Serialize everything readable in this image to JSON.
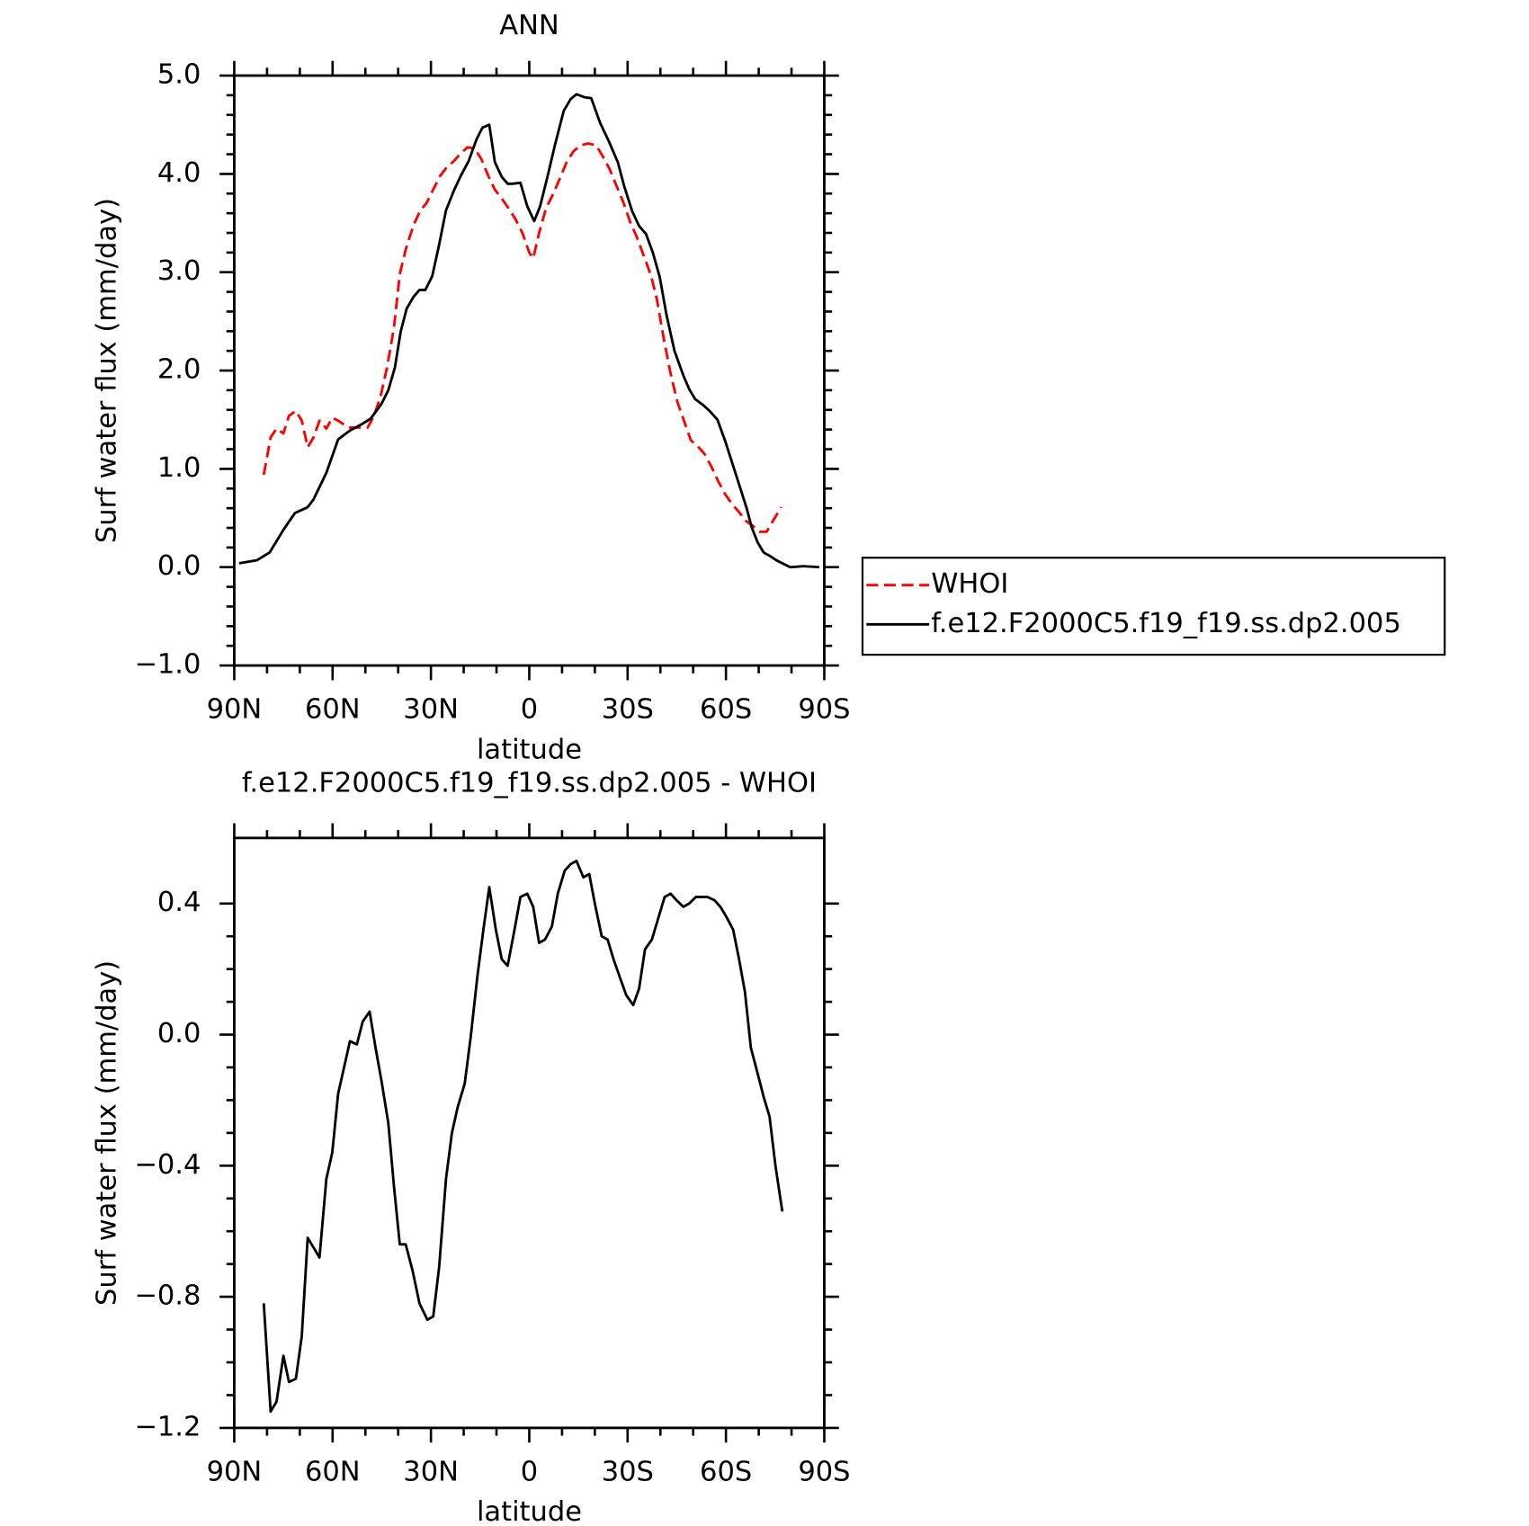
{
  "chart_data": [
    {
      "type": "line",
      "title": "ANN",
      "x_label": "latitude",
      "y_label": "Surf water flux (mm/day)",
      "xlim": [
        90,
        -90
      ],
      "xticks": [
        {
          "value": 90,
          "label": "90N"
        },
        {
          "value": 60,
          "label": "60N"
        },
        {
          "value": 30,
          "label": "30N"
        },
        0,
        {
          "value": -30,
          "label": "30S"
        },
        {
          "value": -60,
          "label": "60S"
        },
        {
          "value": -90,
          "label": "90S"
        }
      ],
      "ylim": [
        -1.0,
        5.0
      ],
      "yticks": [
        {
          "value": -1.0,
          "label": "−1.0"
        },
        {
          "value": 0.0,
          "label": "0.0"
        },
        {
          "value": 1.0,
          "label": "1.0"
        },
        {
          "value": 2.0,
          "label": "2.0"
        },
        {
          "value": 3.0,
          "label": "3.0"
        },
        {
          "value": 4.0,
          "label": "4.0"
        },
        {
          "value": 5.0,
          "label": "5.0"
        }
      ],
      "legend": "right",
      "series": [
        {
          "name": "WHOI",
          "color": "#ff0000",
          "line_style": "dashed",
          "x": [
            81.0,
            78.9,
            77.1,
            75.0,
            73.3,
            71.2,
            69.4,
            67.6,
            65.8,
            64.0,
            61.9,
            60.1,
            58.3,
            56.5,
            54.7,
            52.6,
            49.3,
            47.5,
            45.4,
            43.4,
            41.3,
            39.5,
            37.7,
            35.3,
            33.2,
            31.4,
            29.3,
            27.2,
            25.1,
            23.0,
            20.9,
            18.8,
            16.7,
            14.6,
            12.5,
            10.5,
            8.4,
            6.3,
            4.2,
            2.1,
            0.0,
            -1.2,
            -3.0,
            -5.1,
            -7.2,
            -9.3,
            -11.4,
            -13.5,
            -15.6,
            -18.0,
            -20.4,
            -22.4,
            -24.5,
            -26.6,
            -28.7,
            -30.8,
            -32.9,
            -35.0,
            -37.1,
            -38.9,
            -41.0,
            -43.1,
            -45.2,
            -47.3,
            -49.3,
            -51.4,
            -53.5,
            -55.6,
            -57.7,
            -59.8,
            -61.9,
            -64.0,
            -66.1,
            -68.2,
            -70.3,
            -72.4,
            -74.5,
            -76.9
          ],
          "values": [
            0.94,
            1.32,
            1.41,
            1.36,
            1.54,
            1.59,
            1.49,
            1.22,
            1.32,
            1.49,
            1.41,
            1.52,
            1.49,
            1.45,
            1.42,
            1.42,
            1.42,
            1.53,
            1.73,
            2.03,
            2.43,
            2.98,
            3.23,
            3.48,
            3.63,
            3.7,
            3.84,
            3.98,
            4.07,
            4.13,
            4.21,
            4.27,
            4.26,
            4.15,
            3.98,
            3.84,
            3.75,
            3.65,
            3.54,
            3.4,
            3.2,
            3.14,
            3.4,
            3.65,
            3.79,
            3.95,
            4.12,
            4.23,
            4.29,
            4.31,
            4.29,
            4.18,
            4.05,
            3.88,
            3.71,
            3.51,
            3.35,
            3.16,
            2.97,
            2.73,
            2.33,
            1.97,
            1.68,
            1.48,
            1.29,
            1.23,
            1.15,
            1.02,
            0.87,
            0.74,
            0.64,
            0.56,
            0.47,
            0.42,
            0.36,
            0.36,
            0.48,
            0.61
          ]
        },
        {
          "name": "f.e12.F2000C5.f19_f19.ss.dp2.005",
          "color": "#000000",
          "line_style": "solid",
          "x": [
            88.5,
            83.1,
            79.2,
            75.0,
            71.5,
            67.6,
            65.8,
            61.9,
            58.3,
            54.7,
            50.8,
            48.4,
            45.1,
            43.0,
            41.0,
            39.2,
            37.4,
            35.3,
            33.5,
            31.7,
            29.6,
            27.5,
            25.4,
            23.0,
            20.9,
            18.5,
            16.1,
            14.3,
            12.2,
            10.5,
            8.4,
            6.6,
            5.1,
            2.7,
            0.6,
            -1.5,
            -3.3,
            -5.4,
            -7.8,
            -10.5,
            -12.6,
            -14.4,
            -16.8,
            -18.9,
            -21.6,
            -24.3,
            -27.0,
            -29.0,
            -31.4,
            -33.5,
            -35.6,
            -37.7,
            -39.8,
            -41.9,
            -44.3,
            -47.0,
            -48.8,
            -50.6,
            -53.0,
            -55.0,
            -57.4,
            -59.8,
            -62.2,
            -64.6,
            -66.4,
            -67.9,
            -69.7,
            -71.5,
            -73.6,
            -75.4,
            -77.8,
            -79.6,
            -83.7,
            -88.5
          ],
          "values": [
            0.04,
            0.07,
            0.15,
            0.38,
            0.55,
            0.61,
            0.69,
            0.96,
            1.3,
            1.39,
            1.46,
            1.51,
            1.66,
            1.8,
            2.03,
            2.4,
            2.63,
            2.75,
            2.82,
            2.82,
            2.96,
            3.28,
            3.63,
            3.83,
            3.98,
            4.13,
            4.35,
            4.47,
            4.5,
            4.12,
            3.97,
            3.9,
            3.9,
            3.91,
            3.67,
            3.52,
            3.67,
            3.95,
            4.29,
            4.64,
            4.76,
            4.81,
            4.78,
            4.77,
            4.52,
            4.33,
            4.12,
            3.87,
            3.62,
            3.47,
            3.39,
            3.2,
            2.95,
            2.56,
            2.2,
            1.95,
            1.81,
            1.71,
            1.65,
            1.59,
            1.5,
            1.28,
            1.03,
            0.78,
            0.59,
            0.4,
            0.25,
            0.15,
            0.11,
            0.07,
            0.03,
            0.0,
            0.01,
            0.0
          ]
        }
      ]
    },
    {
      "type": "line",
      "title": "f.e12.F2000C5.f19_f19.ss.dp2.005 - WHOI",
      "x_label": "latitude",
      "y_label": "Surf water flux (mm/day)",
      "xlim": [
        90,
        -90
      ],
      "xticks": [
        {
          "value": 90,
          "label": "90N"
        },
        {
          "value": 60,
          "label": "60N"
        },
        {
          "value": 30,
          "label": "30N"
        },
        0,
        {
          "value": -30,
          "label": "30S"
        },
        {
          "value": -60,
          "label": "60S"
        },
        {
          "value": -90,
          "label": "90S"
        }
      ],
      "ylim": [
        -1.2,
        0.6
      ],
      "yticks": [
        {
          "value": -1.2,
          "label": "−1.2"
        },
        {
          "value": -0.8,
          "label": "−0.8"
        },
        {
          "value": -0.4,
          "label": "−0.4"
        },
        {
          "value": 0.0,
          "label": "0.0"
        },
        {
          "value": 0.4,
          "label": "0.4"
        }
      ],
      "series": [
        {
          "color": "#000000",
          "line_style": "solid",
          "x": [
            81.0,
            78.9,
            77.1,
            75.0,
            73.3,
            71.2,
            69.4,
            67.6,
            65.8,
            64.0,
            61.9,
            60.1,
            58.3,
            56.5,
            54.7,
            52.6,
            50.8,
            48.7,
            46.9,
            45.1,
            43.0,
            41.3,
            39.5,
            37.7,
            35.6,
            33.5,
            31.1,
            29.3,
            27.5,
            25.4,
            23.6,
            21.8,
            19.7,
            17.9,
            15.8,
            14.0,
            12.2,
            10.2,
            8.4,
            6.6,
            4.5,
            2.7,
            0.6,
            -1.2,
            -3.0,
            -4.8,
            -6.9,
            -8.7,
            -10.8,
            -12.6,
            -14.4,
            -16.5,
            -18.3,
            -20.0,
            -22.1,
            -23.9,
            -25.7,
            -27.8,
            -29.6,
            -31.7,
            -33.5,
            -35.3,
            -37.4,
            -39.2,
            -41.3,
            -43.1,
            -44.9,
            -47.0,
            -48.8,
            -50.8,
            -52.6,
            -54.4,
            -56.5,
            -58.3,
            -60.1,
            -62.2,
            -64.0,
            -65.8,
            -67.6,
            -69.7,
            -71.5,
            -73.3,
            -75.1,
            -77.2
          ],
          "values": [
            -0.82,
            -1.15,
            -1.12,
            -0.98,
            -1.06,
            -1.05,
            -0.92,
            -0.62,
            -0.65,
            -0.68,
            -0.44,
            -0.36,
            -0.18,
            -0.1,
            -0.02,
            -0.03,
            0.04,
            0.07,
            -0.04,
            -0.14,
            -0.27,
            -0.46,
            -0.64,
            -0.64,
            -0.72,
            -0.82,
            -0.87,
            -0.86,
            -0.71,
            -0.44,
            -0.3,
            -0.22,
            -0.15,
            -0.01,
            0.18,
            0.32,
            0.45,
            0.32,
            0.23,
            0.21,
            0.32,
            0.42,
            0.43,
            0.39,
            0.28,
            0.29,
            0.33,
            0.43,
            0.5,
            0.52,
            0.53,
            0.48,
            0.49,
            0.4,
            0.3,
            0.29,
            0.23,
            0.17,
            0.12,
            0.09,
            0.14,
            0.26,
            0.29,
            0.35,
            0.42,
            0.43,
            0.41,
            0.39,
            0.4,
            0.42,
            0.42,
            0.42,
            0.41,
            0.39,
            0.36,
            0.32,
            0.23,
            0.13,
            -0.04,
            -0.12,
            -0.19,
            -0.25,
            -0.4,
            -0.54
          ]
        }
      ]
    }
  ]
}
